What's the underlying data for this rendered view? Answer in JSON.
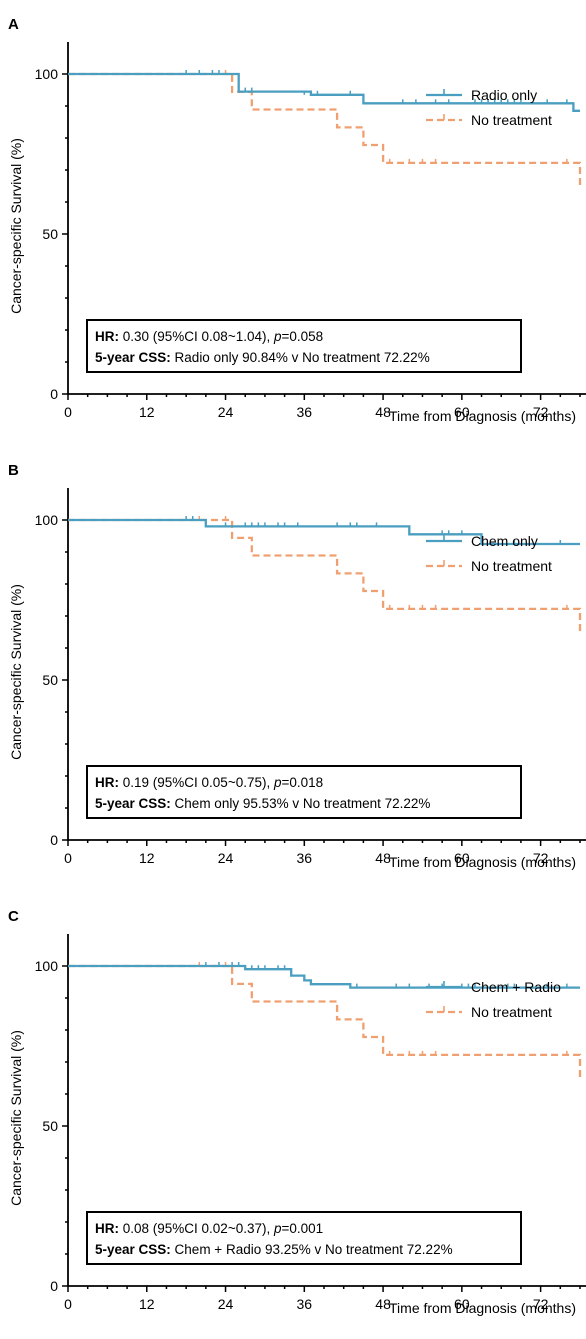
{
  "colors": {
    "series1": "#4a9ec0",
    "series2": "#f0a070",
    "axis": "#000000"
  },
  "chart_data": [
    {
      "type": "line",
      "panel_label": "A",
      "xlabel": "Time from Diagnosis (months)",
      "ylabel": "Cancer-specific Survival (%)",
      "xlim": [
        0,
        78
      ],
      "ylim": [
        0,
        110
      ],
      "xticks": [
        "0",
        "12",
        "24",
        "36",
        "48",
        "60",
        "72"
      ],
      "yticks": [
        "0",
        "50",
        "100"
      ],
      "legend_position": "top-right",
      "series": [
        {
          "name": "Radio only",
          "style": "solid",
          "steps": [
            [
              0,
              100
            ],
            [
              26,
              100
            ],
            [
              26,
              94.5
            ],
            [
              37,
              94.5
            ],
            [
              37,
              93.5
            ],
            [
              45,
              93.5
            ],
            [
              45,
              90.84
            ],
            [
              77,
              90.84
            ],
            [
              77,
              88.5
            ],
            [
              78,
              88.5
            ]
          ],
          "censors": [
            [
              18,
              100
            ],
            [
              20,
              100
            ],
            [
              22,
              100
            ],
            [
              23,
              100
            ],
            [
              27,
              94.5
            ],
            [
              28,
              94.5
            ],
            [
              36,
              93.5
            ],
            [
              38,
              93.5
            ],
            [
              43,
              93.5
            ],
            [
              51,
              90.84
            ],
            [
              53,
              90.84
            ],
            [
              56,
              90.84
            ],
            [
              58,
              90.84
            ],
            [
              62,
              90.84
            ],
            [
              63,
              90.84
            ],
            [
              64,
              90.84
            ],
            [
              65,
              90.84
            ],
            [
              66,
              90.84
            ],
            [
              67,
              90.84
            ],
            [
              68,
              90.84
            ],
            [
              69,
              90.84
            ],
            [
              73,
              90.84
            ],
            [
              76,
              90.84
            ]
          ]
        },
        {
          "name": "No treatment",
          "style": "dashed",
          "steps": [
            [
              0,
              100
            ],
            [
              25,
              100
            ],
            [
              25,
              94.4
            ],
            [
              28,
              94.4
            ],
            [
              28,
              88.9
            ],
            [
              41,
              88.9
            ],
            [
              41,
              83.3
            ],
            [
              45,
              83.3
            ],
            [
              45,
              77.8
            ],
            [
              48,
              77.8
            ],
            [
              48,
              72.22
            ],
            [
              78,
              72.22
            ],
            [
              78,
              64.5
            ]
          ],
          "censors": [
            [
              20,
              100
            ],
            [
              24,
              100
            ],
            [
              49,
              72.22
            ],
            [
              52,
              72.22
            ],
            [
              54,
              72.22
            ],
            [
              56,
              72.22
            ],
            [
              76,
              72.22
            ]
          ]
        }
      ],
      "annotation": {
        "line1_bold": "HR:",
        "line1": " 0.30 (95%CI 0.08~1.04), ",
        "line1_p": "p",
        "line1_end": "=0.058",
        "line2_bold": "5-year CSS:",
        "line2": " Radio only 90.84% v No treatment 72.22%"
      }
    },
    {
      "type": "line",
      "panel_label": "B",
      "xlabel": "Time from Diagnosis (months)",
      "ylabel": "Cancer-specific Survival (%)",
      "xlim": [
        0,
        78
      ],
      "ylim": [
        0,
        110
      ],
      "xticks": [
        "0",
        "12",
        "24",
        "36",
        "48",
        "60",
        "72"
      ],
      "yticks": [
        "0",
        "50",
        "100"
      ],
      "legend_position": "top-right",
      "series": [
        {
          "name": "Chem only",
          "style": "solid",
          "steps": [
            [
              0,
              100
            ],
            [
              21,
              100
            ],
            [
              21,
              98
            ],
            [
              52,
              98
            ],
            [
              52,
              95.53
            ],
            [
              63,
              95.53
            ],
            [
              63,
              92.5
            ],
            [
              78,
              92.5
            ]
          ],
          "censors": [
            [
              18,
              100
            ],
            [
              19,
              100
            ],
            [
              24,
              98
            ],
            [
              27,
              98
            ],
            [
              28,
              98
            ],
            [
              29,
              98
            ],
            [
              30,
              98
            ],
            [
              32,
              98
            ],
            [
              33,
              98
            ],
            [
              35,
              98
            ],
            [
              41,
              98
            ],
            [
              43,
              98
            ],
            [
              44,
              98
            ],
            [
              47,
              98
            ],
            [
              57,
              95.53
            ],
            [
              58,
              95.53
            ],
            [
              60,
              95.53
            ],
            [
              68,
              92.5
            ],
            [
              75,
              92.5
            ]
          ]
        },
        {
          "name": "No treatment",
          "style": "dashed",
          "steps": [
            [
              0,
              100
            ],
            [
              25,
              100
            ],
            [
              25,
              94.4
            ],
            [
              28,
              94.4
            ],
            [
              28,
              88.9
            ],
            [
              41,
              88.9
            ],
            [
              41,
              83.3
            ],
            [
              45,
              83.3
            ],
            [
              45,
              77.8
            ],
            [
              48,
              77.8
            ],
            [
              48,
              72.22
            ],
            [
              78,
              72.22
            ],
            [
              78,
              64.5
            ]
          ],
          "censors": [
            [
              20,
              100
            ],
            [
              24,
              100
            ],
            [
              49,
              72.22
            ],
            [
              52,
              72.22
            ],
            [
              54,
              72.22
            ],
            [
              56,
              72.22
            ],
            [
              76,
              72.22
            ]
          ]
        }
      ],
      "annotation": {
        "line1_bold": "HR:",
        "line1": " 0.19 (95%CI 0.05~0.75), ",
        "line1_p": "p",
        "line1_end": "=0.018",
        "line2_bold": "5-year CSS:",
        "line2": " Chem only 95.53% v No treatment 72.22%"
      }
    },
    {
      "type": "line",
      "panel_label": "C",
      "xlabel": "Time from Diagnosis (months)",
      "ylabel": "Cancer-specific Survival (%)",
      "xlim": [
        0,
        78
      ],
      "ylim": [
        0,
        110
      ],
      "xticks": [
        "0",
        "12",
        "24",
        "36",
        "48",
        "60",
        "72"
      ],
      "yticks": [
        "0",
        "50",
        "100"
      ],
      "legend_position": "top-right",
      "series": [
        {
          "name": "Chem + Radio",
          "style": "solid",
          "steps": [
            [
              0,
              100
            ],
            [
              27,
              100
            ],
            [
              27,
              99
            ],
            [
              34,
              99
            ],
            [
              34,
              97
            ],
            [
              36,
              97
            ],
            [
              36,
              95.5
            ],
            [
              37,
              95.5
            ],
            [
              37,
              94.3
            ],
            [
              43,
              94.3
            ],
            [
              43,
              93.25
            ],
            [
              78,
              93.25
            ]
          ],
          "censors": [
            [
              21,
              100
            ],
            [
              23,
              100
            ],
            [
              25,
              100
            ],
            [
              26,
              100
            ],
            [
              28,
              99
            ],
            [
              29,
              99
            ],
            [
              30,
              99
            ],
            [
              32,
              99
            ],
            [
              33,
              99
            ],
            [
              44,
              93.25
            ],
            [
              50,
              93.25
            ],
            [
              52,
              93.25
            ],
            [
              55,
              93.25
            ],
            [
              57,
              93.25
            ],
            [
              60,
              93.25
            ],
            [
              61,
              93.25
            ],
            [
              62,
              93.25
            ],
            [
              67,
              93.25
            ],
            [
              68,
              93.25
            ],
            [
              73,
              93.25
            ],
            [
              76,
              93.25
            ]
          ]
        },
        {
          "name": "No treatment",
          "style": "dashed",
          "steps": [
            [
              0,
              100
            ],
            [
              25,
              100
            ],
            [
              25,
              94.4
            ],
            [
              28,
              94.4
            ],
            [
              28,
              88.9
            ],
            [
              41,
              88.9
            ],
            [
              41,
              83.3
            ],
            [
              45,
              83.3
            ],
            [
              45,
              77.8
            ],
            [
              48,
              77.8
            ],
            [
              48,
              72.22
            ],
            [
              78,
              72.22
            ],
            [
              78,
              64.5
            ]
          ],
          "censors": [
            [
              20,
              100
            ],
            [
              24,
              100
            ],
            [
              49,
              72.22
            ],
            [
              52,
              72.22
            ],
            [
              54,
              72.22
            ],
            [
              56,
              72.22
            ],
            [
              76,
              72.22
            ]
          ]
        }
      ],
      "annotation": {
        "line1_bold": "HR:",
        "line1": " 0.08 (95%CI 0.02~0.37), ",
        "line1_p": "p",
        "line1_end": "=0.001",
        "line2_bold": "5-year CSS:",
        "line2": " Chem + Radio 93.25% v No treatment 72.22%"
      }
    }
  ]
}
